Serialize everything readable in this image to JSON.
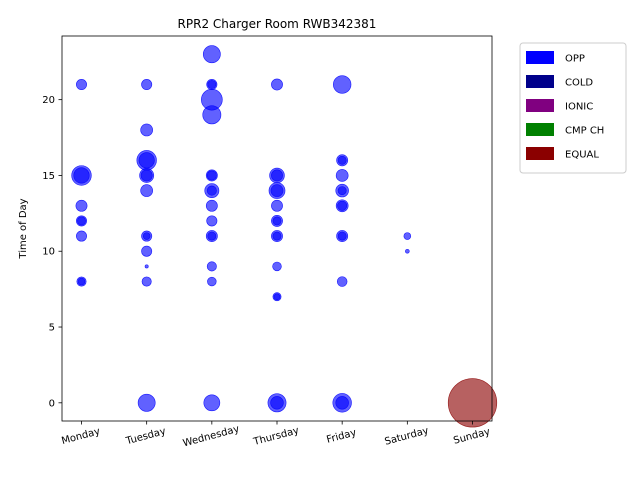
{
  "chart_data": {
    "type": "scatter",
    "title": "RPR2 Charger Room RWB342381",
    "xlabel": "",
    "ylabel": "Time of Day",
    "categories": [
      "Monday",
      "Tuesday",
      "Wednesday",
      "Thursday",
      "Friday",
      "Saturday",
      "Sunday"
    ],
    "yticks": [
      0,
      5,
      10,
      15,
      20
    ],
    "ylim": [
      -1.2,
      24.2
    ],
    "grid": false,
    "legend_position": "outside-right-top",
    "legend": [
      {
        "label": "OPP",
        "color": "#0000ff"
      },
      {
        "label": "COLD",
        "color": "#00008b"
      },
      {
        "label": "IONIC",
        "color": "#800080"
      },
      {
        "label": "CMP CH",
        "color": "#008000"
      },
      {
        "label": "EQUAL",
        "color": "#8b0000"
      }
    ],
    "series": [
      {
        "type": "OPP",
        "color": "#0000ff",
        "points": [
          {
            "day": "Monday",
            "hour": 21,
            "size": 50
          },
          {
            "day": "Monday",
            "hour": 15,
            "size": 200
          },
          {
            "day": "Monday",
            "hour": 15,
            "size": 120
          },
          {
            "day": "Monday",
            "hour": 13,
            "size": 60
          },
          {
            "day": "Monday",
            "hour": 12,
            "size": 50
          },
          {
            "day": "Monday",
            "hour": 12,
            "size": 30
          },
          {
            "day": "Monday",
            "hour": 11,
            "size": 50
          },
          {
            "day": "Monday",
            "hour": 8,
            "size": 40
          },
          {
            "day": "Monday",
            "hour": 8,
            "size": 20
          },
          {
            "day": "Tuesday",
            "hour": 21,
            "size": 50
          },
          {
            "day": "Tuesday",
            "hour": 18,
            "size": 70
          },
          {
            "day": "Tuesday",
            "hour": 16,
            "size": 200
          },
          {
            "day": "Tuesday",
            "hour": 16,
            "size": 120
          },
          {
            "day": "Tuesday",
            "hour": 15,
            "size": 100
          },
          {
            "day": "Tuesday",
            "hour": 15,
            "size": 60
          },
          {
            "day": "Tuesday",
            "hour": 14,
            "size": 70
          },
          {
            "day": "Tuesday",
            "hour": 11,
            "size": 50
          },
          {
            "day": "Tuesday",
            "hour": 11,
            "size": 20
          },
          {
            "day": "Tuesday",
            "hour": 10,
            "size": 50
          },
          {
            "day": "Tuesday",
            "hour": 9,
            "size": 3
          },
          {
            "day": "Tuesday",
            "hour": 8,
            "size": 40
          },
          {
            "day": "Tuesday",
            "hour": 0,
            "size": 150
          },
          {
            "day": "Wednesday",
            "hour": 23,
            "size": 150
          },
          {
            "day": "Wednesday",
            "hour": 21,
            "size": 50
          },
          {
            "day": "Wednesday",
            "hour": 21,
            "size": 30
          },
          {
            "day": "Wednesday",
            "hour": 20,
            "size": 230
          },
          {
            "day": "Wednesday",
            "hour": 19,
            "size": 170
          },
          {
            "day": "Wednesday",
            "hour": 15,
            "size": 60
          },
          {
            "day": "Wednesday",
            "hour": 15,
            "size": 40
          },
          {
            "day": "Wednesday",
            "hour": 14,
            "size": 100
          },
          {
            "day": "Wednesday",
            "hour": 14,
            "size": 40
          },
          {
            "day": "Wednesday",
            "hour": 13,
            "size": 60
          },
          {
            "day": "Wednesday",
            "hour": 12,
            "size": 50
          },
          {
            "day": "Wednesday",
            "hour": 11,
            "size": 60
          },
          {
            "day": "Wednesday",
            "hour": 11,
            "size": 30
          },
          {
            "day": "Wednesday",
            "hour": 9,
            "size": 40
          },
          {
            "day": "Wednesday",
            "hour": 8,
            "size": 35
          },
          {
            "day": "Wednesday",
            "hour": 0,
            "size": 130
          },
          {
            "day": "Thursday",
            "hour": 21,
            "size": 60
          },
          {
            "day": "Thursday",
            "hour": 15,
            "size": 110
          },
          {
            "day": "Thursday",
            "hour": 15,
            "size": 60
          },
          {
            "day": "Thursday",
            "hour": 14,
            "size": 130
          },
          {
            "day": "Thursday",
            "hour": 14,
            "size": 70
          },
          {
            "day": "Thursday",
            "hour": 13,
            "size": 60
          },
          {
            "day": "Thursday",
            "hour": 12,
            "size": 60
          },
          {
            "day": "Thursday",
            "hour": 12,
            "size": 30
          },
          {
            "day": "Thursday",
            "hour": 11,
            "size": 60
          },
          {
            "day": "Thursday",
            "hour": 11,
            "size": 30
          },
          {
            "day": "Thursday",
            "hour": 9,
            "size": 35
          },
          {
            "day": "Thursday",
            "hour": 7,
            "size": 30
          },
          {
            "day": "Thursday",
            "hour": 7,
            "size": 15
          },
          {
            "day": "Thursday",
            "hour": 0,
            "size": 170
          },
          {
            "day": "Thursday",
            "hour": 0,
            "size": 80
          },
          {
            "day": "Friday",
            "hour": 21,
            "size": 160
          },
          {
            "day": "Friday",
            "hour": 16,
            "size": 60
          },
          {
            "day": "Friday",
            "hour": 16,
            "size": 30
          },
          {
            "day": "Friday",
            "hour": 15,
            "size": 70
          },
          {
            "day": "Friday",
            "hour": 14,
            "size": 80
          },
          {
            "day": "Friday",
            "hour": 14,
            "size": 30
          },
          {
            "day": "Friday",
            "hour": 13,
            "size": 70
          },
          {
            "day": "Friday",
            "hour": 13,
            "size": 40
          },
          {
            "day": "Friday",
            "hour": 11,
            "size": 60
          },
          {
            "day": "Friday",
            "hour": 11,
            "size": 30
          },
          {
            "day": "Friday",
            "hour": 8,
            "size": 45
          },
          {
            "day": "Friday",
            "hour": 0,
            "size": 180
          },
          {
            "day": "Friday",
            "hour": 0,
            "size": 80
          },
          {
            "day": "Saturday",
            "hour": 11,
            "size": 20
          },
          {
            "day": "Saturday",
            "hour": 10,
            "size": 5
          }
        ]
      },
      {
        "type": "EQUAL",
        "color": "#8b0000",
        "points": [
          {
            "day": "Sunday",
            "hour": 0,
            "size": 1300
          }
        ]
      }
    ]
  }
}
